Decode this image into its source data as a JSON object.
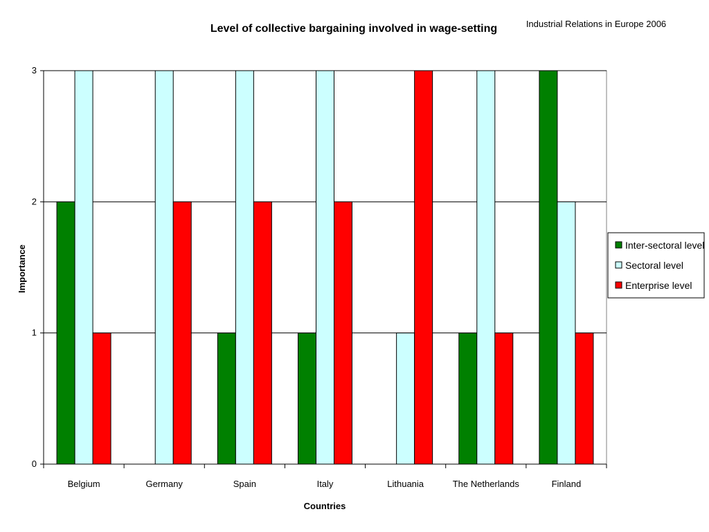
{
  "source_note": "Industrial Relations in Europe 2006",
  "chart_data": {
    "type": "bar",
    "title": "Level of collective bargaining involved in wage-setting",
    "xlabel": "Countries",
    "ylabel": "Importance",
    "ylim": [
      0,
      3
    ],
    "yticks": [
      0,
      1,
      2,
      3
    ],
    "grid": true,
    "legend_position": "right",
    "categories": [
      "Belgium",
      "Germany",
      "Spain",
      "Italy",
      "Lithuania",
      "The Netherlands",
      "Finland"
    ],
    "series": [
      {
        "name": "Inter-sectoral level",
        "color": "#008000",
        "values": [
          2,
          0,
          1,
          1,
          0,
          1,
          3
        ]
      },
      {
        "name": "Sectoral level",
        "color": "#ccffff",
        "values": [
          3,
          3,
          3,
          3,
          1,
          3,
          2
        ]
      },
      {
        "name": "Enterprise level",
        "color": "#ff0000",
        "values": [
          1,
          2,
          2,
          2,
          3,
          1,
          1
        ]
      }
    ]
  }
}
